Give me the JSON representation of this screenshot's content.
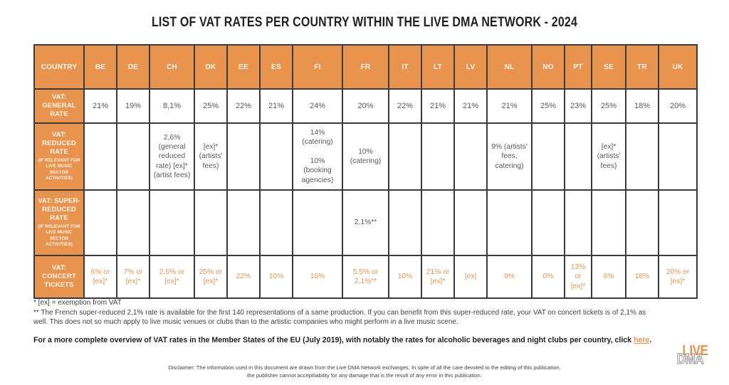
{
  "title": "LIST OF VAT RATES PER COUNTRY WITHIN THE LIVE DMA NETWORK - 2024",
  "colors": {
    "orange": "#e8944f",
    "border": "#3b3b3b",
    "value_text": "#58595b",
    "header_text": "#faf5eb"
  },
  "table": {
    "header": [
      "COUNTRY",
      "BE",
      "DE",
      "CH",
      "DK",
      "EE",
      "ES",
      "FI",
      "FR",
      "IT",
      "LT",
      "LV",
      "NL",
      "NO",
      "PT",
      "SE",
      "TR",
      "UK"
    ],
    "rows": [
      {
        "id": "general-rate",
        "label": "VAT: GENERAL RATE",
        "sublabel": "",
        "row_class": "r-general",
        "cells": [
          "21%",
          "19%",
          "8,1%",
          "25%",
          "22%",
          "21%",
          "24%",
          "20%",
          "22%",
          "21%",
          "21%",
          "21%",
          "25%",
          "23%",
          "25%",
          "18%",
          "20%"
        ]
      },
      {
        "id": "reduced-rate",
        "label": "VAT: REDUCED RATE",
        "sublabel": "(IF RELEVANT FOR LIVE MUSIC SECTOR ACTIVITIES)",
        "row_class": "r-reduced small",
        "cells": [
          "",
          "",
          "2,6% (general reduced rate) [ex]* (artist fees)",
          "[ex]* (artists' fees)",
          "",
          "",
          "14% (catering)\n\n10% (booking agencies)",
          "10% (catering)",
          "",
          "",
          "",
          "9% (artists' fees, catering)",
          "",
          "",
          "[ex]* (artists' fees)",
          "",
          ""
        ]
      },
      {
        "id": "super-reduced-rate",
        "label": "VAT: SUPER-REDUCED RATE",
        "sublabel": "(IF RELEVANT FOR LIVE MUSIC SECTOR ACTIVITIES)",
        "row_class": "r-super small",
        "cells": [
          "",
          "",
          "",
          "",
          "",
          "",
          "",
          "2,1%**",
          "",
          "",
          "",
          "",
          "",
          "",
          "",
          "",
          ""
        ]
      },
      {
        "id": "concert-tickets",
        "label": "VAT: CONCERT TICKETS",
        "sublabel": "",
        "row_class": "r-concert orange",
        "cells": [
          "6% or [ex]*",
          "7% or [ex]*",
          "2,6% or [ex]*",
          "25% or [ex]*",
          "22%",
          "10%",
          "10%",
          "5,5% or 2,1%**",
          "10%",
          "21% or [ex]*",
          "[ex]",
          "9%",
          "0%",
          "13% or [ex]*",
          "6%",
          "18%",
          "20% or [ex]*"
        ]
      }
    ]
  },
  "footnotes": {
    "star": "* [ex] = exemption from VAT",
    "double_star": "** The French super-reduced 2,1% rate is available for the first 140 representations of a same production. If you can benefit from this super-reduced rate, your VAT on concert tickets is of 2,1% as well. This does not so much apply to live music venues or clubs than to the artistic companies who might perform in a live music scene."
  },
  "overview": {
    "before": "For a more complete overview of VAT rates in the Member States of the EU (July 2019), with notably the rates for alcoholic beverages and night clubs per country, click ",
    "link": "here",
    "after": "."
  },
  "disclaimer": {
    "line1": "Disclaimer: The information used in this document are drawn from the Live DMA Network exchanges. In spite of all the care devoted to the editing of this publication,",
    "line2": "the publisher cannot acceptliability for any damage that is the result of any error in this publication."
  },
  "logo": {
    "top": "LIVE",
    "bottom": "DMA"
  }
}
